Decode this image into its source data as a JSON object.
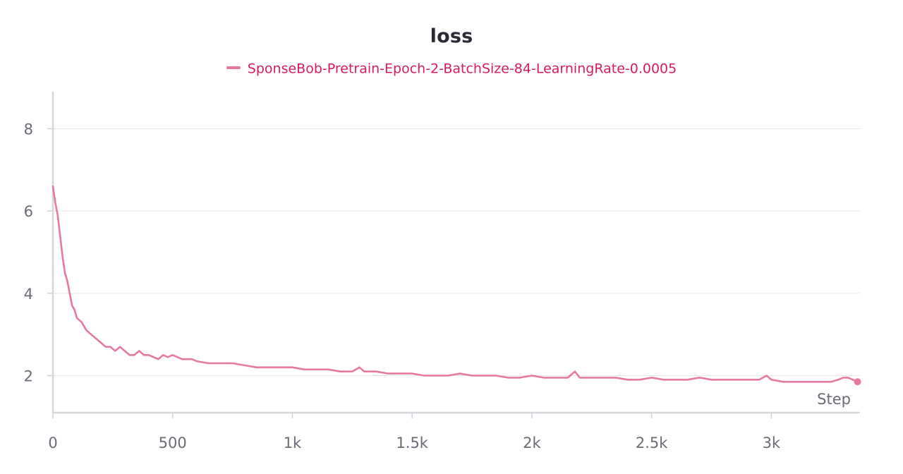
{
  "chart_data": {
    "type": "line",
    "title": "loss",
    "xlabel": "Step",
    "ylabel": "",
    "xlim": [
      0,
      3370
    ],
    "ylim": [
      1.1,
      8.9
    ],
    "x_ticks": [
      {
        "value": 0,
        "label": "0"
      },
      {
        "value": 500,
        "label": "500"
      },
      {
        "value": 1000,
        "label": "1k"
      },
      {
        "value": 1500,
        "label": "1.5k"
      },
      {
        "value": 2000,
        "label": "2k"
      },
      {
        "value": 2500,
        "label": "2.5k"
      },
      {
        "value": 3000,
        "label": "3k"
      }
    ],
    "y_ticks": [
      {
        "value": 2,
        "label": "2"
      },
      {
        "value": 4,
        "label": "4"
      },
      {
        "value": 6,
        "label": "6"
      },
      {
        "value": 8,
        "label": "8"
      }
    ],
    "grid": true,
    "legend_position": "top-center",
    "series": [
      {
        "name": "SponseBob-Pretrain-Epoch-2-BatchSize-84-LearningRate-0.0005",
        "color": "#e8799e",
        "legend_text_color": "#d81b60",
        "x": [
          0,
          10,
          20,
          30,
          40,
          50,
          60,
          70,
          80,
          90,
          100,
          120,
          140,
          160,
          180,
          200,
          220,
          240,
          260,
          280,
          300,
          320,
          340,
          360,
          380,
          400,
          420,
          440,
          460,
          480,
          500,
          520,
          540,
          560,
          580,
          600,
          650,
          700,
          750,
          800,
          850,
          900,
          950,
          1000,
          1050,
          1100,
          1150,
          1200,
          1250,
          1280,
          1300,
          1350,
          1400,
          1450,
          1500,
          1550,
          1600,
          1650,
          1700,
          1750,
          1800,
          1850,
          1900,
          1950,
          2000,
          2050,
          2100,
          2150,
          2180,
          2200,
          2250,
          2300,
          2350,
          2400,
          2450,
          2500,
          2550,
          2600,
          2650,
          2700,
          2750,
          2800,
          2850,
          2900,
          2950,
          2980,
          3000,
          3050,
          3100,
          3150,
          3200,
          3250,
          3280,
          3300,
          3320,
          3340,
          3360
        ],
        "y": [
          6.6,
          6.2,
          5.9,
          5.4,
          4.9,
          4.5,
          4.3,
          4.0,
          3.7,
          3.6,
          3.4,
          3.3,
          3.1,
          3.0,
          2.9,
          2.8,
          2.7,
          2.7,
          2.6,
          2.7,
          2.6,
          2.5,
          2.5,
          2.6,
          2.5,
          2.5,
          2.45,
          2.4,
          2.5,
          2.45,
          2.5,
          2.45,
          2.4,
          2.4,
          2.4,
          2.35,
          2.3,
          2.3,
          2.3,
          2.25,
          2.2,
          2.2,
          2.2,
          2.2,
          2.15,
          2.15,
          2.15,
          2.1,
          2.1,
          2.2,
          2.1,
          2.1,
          2.05,
          2.05,
          2.05,
          2.0,
          2.0,
          2.0,
          2.05,
          2.0,
          2.0,
          2.0,
          1.95,
          1.95,
          2.0,
          1.95,
          1.95,
          1.95,
          2.1,
          1.95,
          1.95,
          1.95,
          1.95,
          1.9,
          1.9,
          1.95,
          1.9,
          1.9,
          1.9,
          1.95,
          1.9,
          1.9,
          1.9,
          1.9,
          1.9,
          2.0,
          1.9,
          1.85,
          1.85,
          1.85,
          1.85,
          1.85,
          1.9,
          1.95,
          1.95,
          1.9,
          1.85
        ]
      }
    ]
  }
}
